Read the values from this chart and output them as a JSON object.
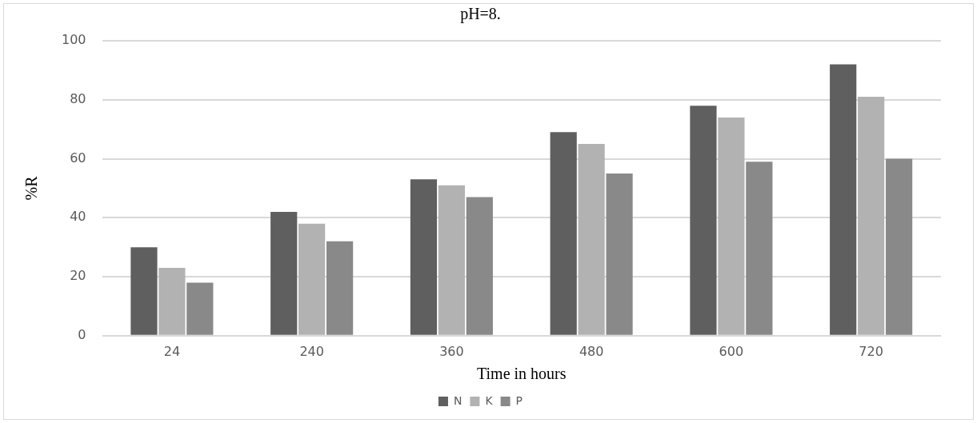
{
  "chart_data": {
    "type": "bar",
    "title": "pH=8.",
    "xlabel": "Time in hours",
    "ylabel": "%R",
    "categories": [
      "24",
      "240",
      "360",
      "480",
      "600",
      "720"
    ],
    "series": [
      {
        "name": "N",
        "color": "#5f5f5f",
        "values": [
          30,
          42,
          53,
          69,
          78,
          92
        ]
      },
      {
        "name": "K",
        "color": "#b2b2b2",
        "values": [
          23,
          38,
          51,
          65,
          74,
          81
        ]
      },
      {
        "name": "P",
        "color": "#898989",
        "values": [
          18,
          32,
          47,
          55,
          59,
          60
        ]
      }
    ],
    "ylim": [
      0,
      100
    ],
    "yticks": [
      0,
      20,
      40,
      60,
      80,
      100
    ],
    "grid": "y",
    "legend": "bottom"
  }
}
